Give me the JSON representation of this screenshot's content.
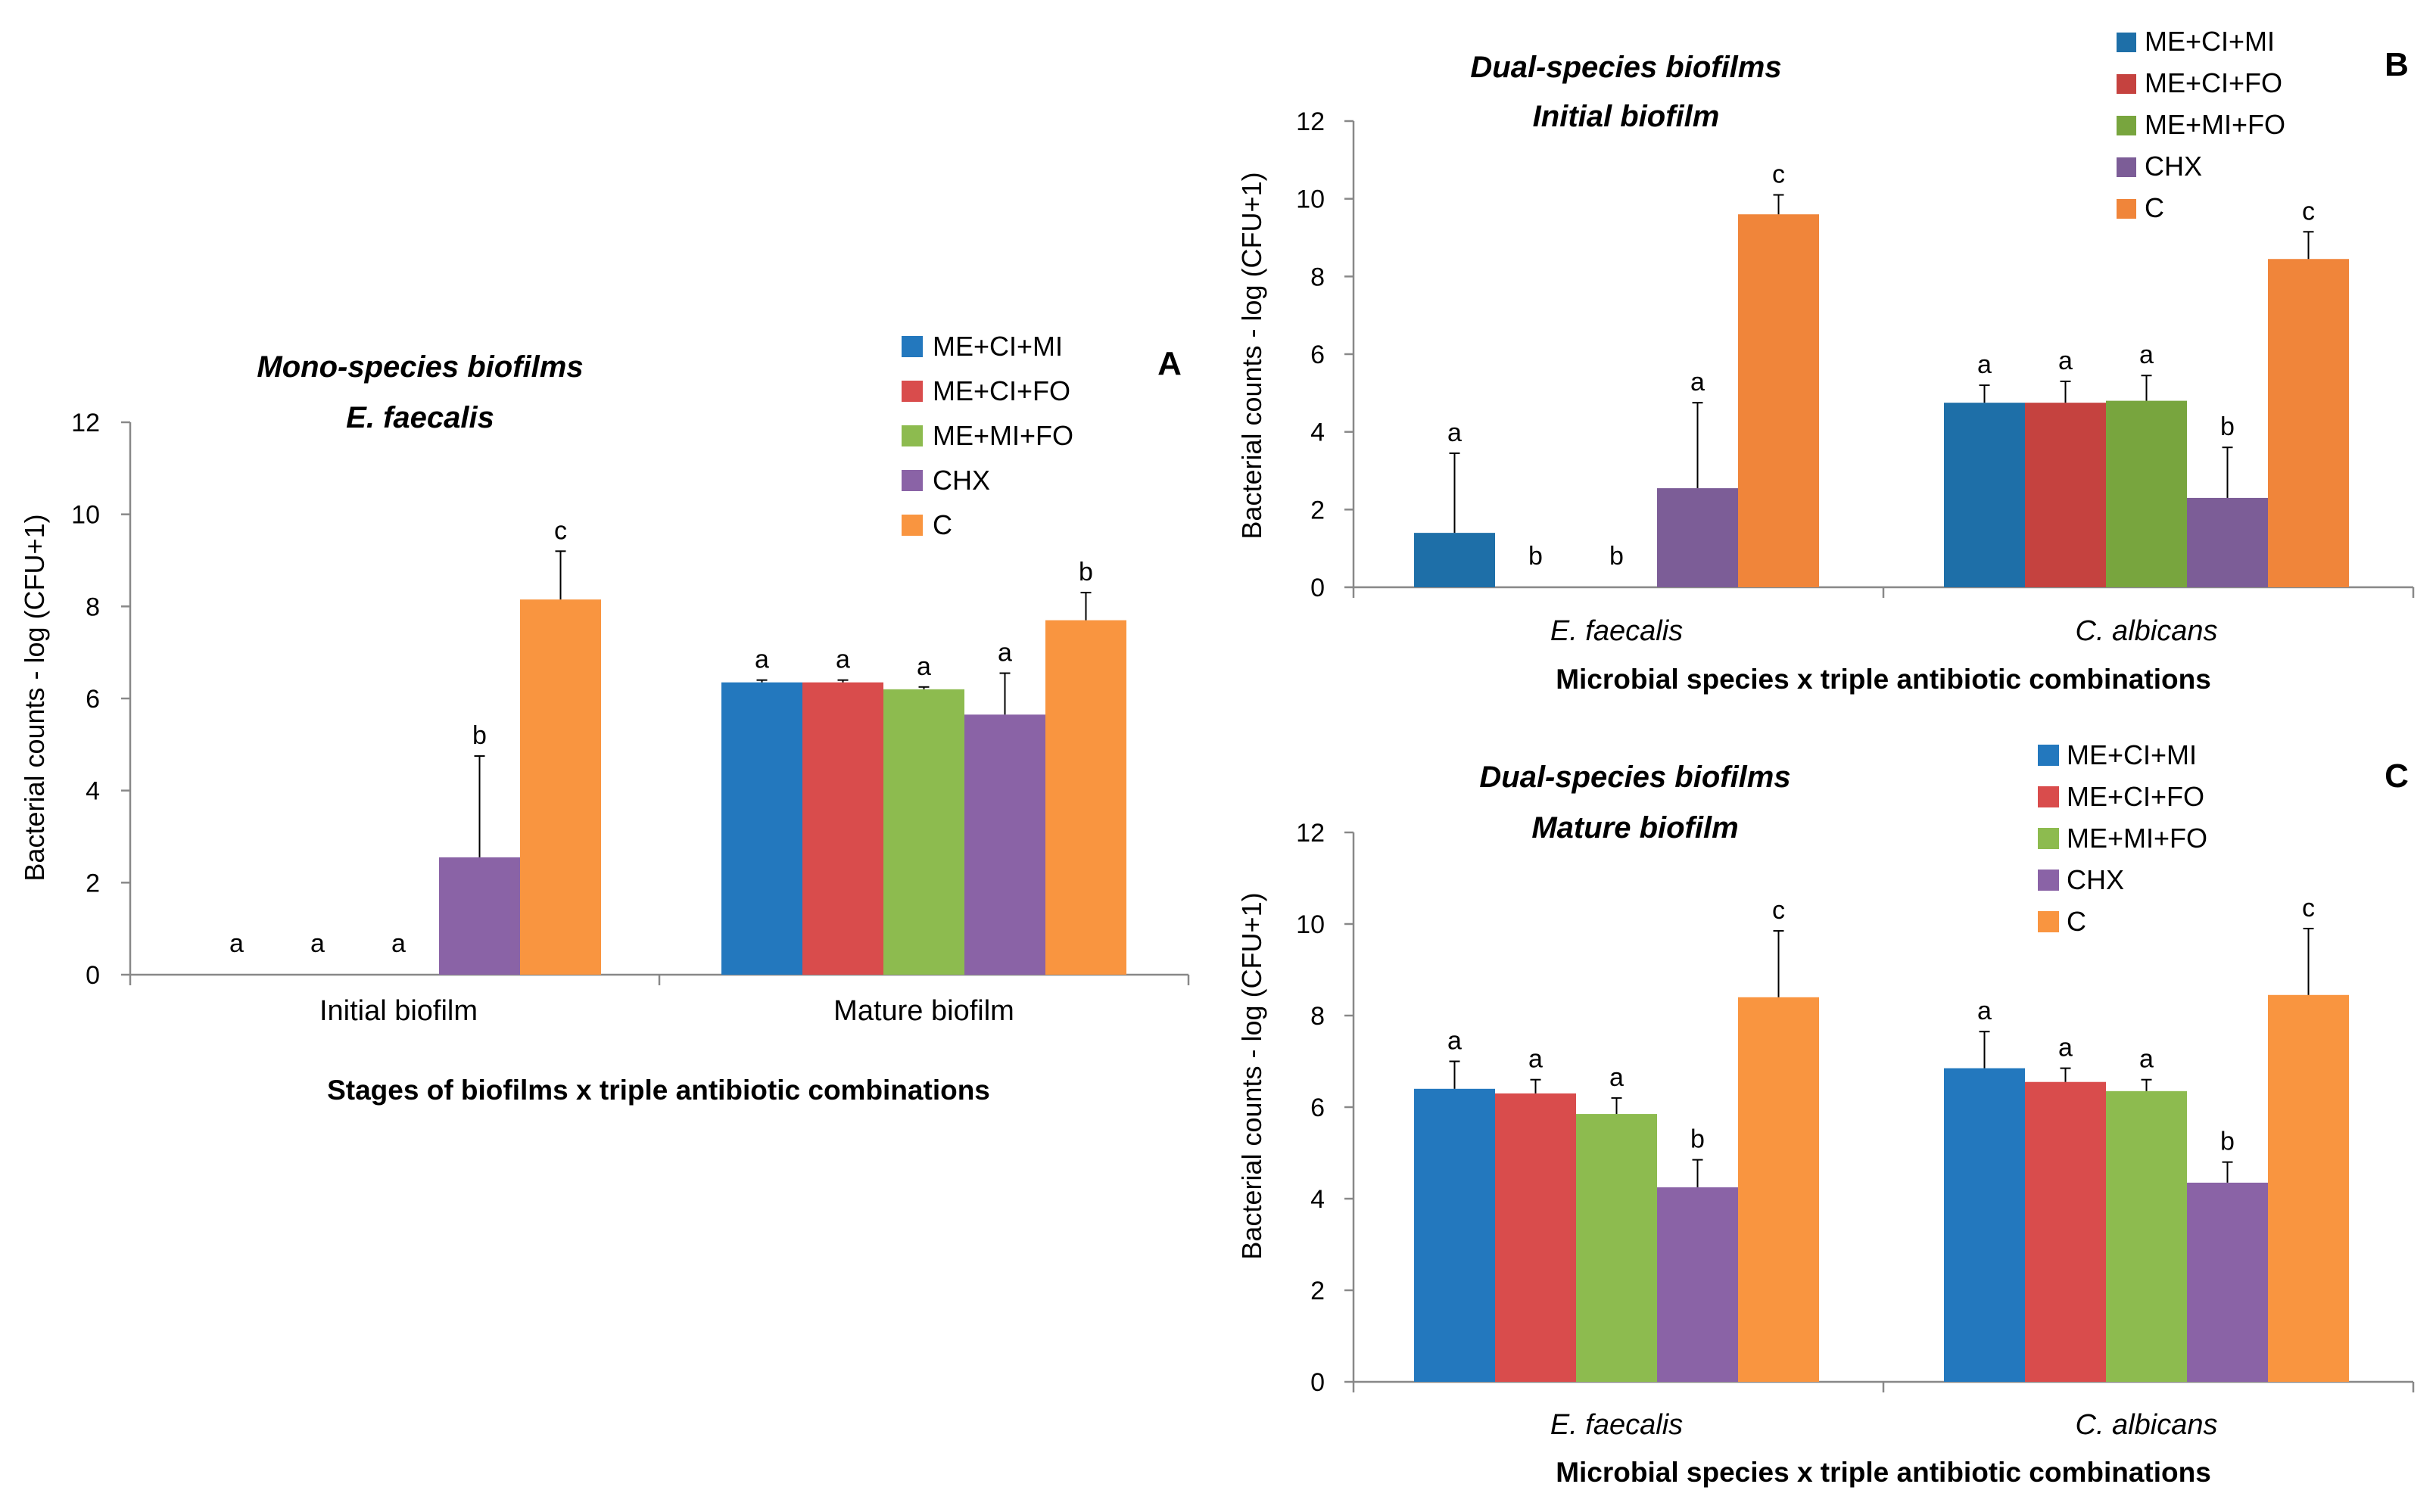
{
  "colors": {
    "ME+CI+MI": "#2378be",
    "ME+CI+FO": "#d94c4c",
    "ME+MI+FO": "#8dbb4f",
    "CHX": "#8a63a6",
    "C": "#f99540",
    "ME+CI+MI_B": "#1e6fa8",
    "ME+CI+FO_B": "#c5423f",
    "ME+MI+FO_B": "#78a53e",
    "CHX_B": "#7c5d97",
    "C_B": "#f0853a"
  },
  "chart_data": [
    {
      "type": "bar",
      "panel": "A",
      "title": [
        "Mono-species biofilms",
        "E. faecalis"
      ],
      "xlabel": "Stages of biofilms x triple antibiotic combinations",
      "ylabel": "Bacterial counts - log (CFU+1)",
      "ylim": [
        0,
        12
      ],
      "yticks": [
        "0",
        "2",
        "4",
        "6",
        "8",
        "10",
        "12"
      ],
      "categories": [
        "Initial biofilm",
        "Mature biofilm"
      ],
      "category_italic": false,
      "legend": [
        "ME+CI+MI",
        "ME+CI+FO",
        "ME+MI+FO",
        "CHX",
        "C"
      ],
      "series": [
        {
          "name": "ME+CI+MI",
          "values": [
            0,
            6.35
          ],
          "errors": [
            0,
            0.05
          ],
          "letters": [
            "a",
            "a"
          ]
        },
        {
          "name": "ME+CI+FO",
          "values": [
            0,
            6.35
          ],
          "errors": [
            0,
            0.05
          ],
          "letters": [
            "a",
            "a"
          ]
        },
        {
          "name": "ME+MI+FO",
          "values": [
            0,
            6.2
          ],
          "errors": [
            0,
            0.05
          ],
          "letters": [
            "a",
            "a"
          ]
        },
        {
          "name": "CHX",
          "values": [
            2.55,
            5.65
          ],
          "errors": [
            2.2,
            0.9
          ],
          "letters": [
            "b",
            "a"
          ]
        },
        {
          "name": "C",
          "values": [
            8.15,
            7.7
          ],
          "errors": [
            1.05,
            0.6
          ],
          "letters": [
            "c",
            "b"
          ]
        }
      ]
    },
    {
      "type": "bar",
      "panel": "B",
      "title": [
        "Dual-species biofilms",
        "Initial biofilm"
      ],
      "xlabel": "Microbial species x triple antibiotic combinations",
      "ylabel": "Bacterial counts - log (CFU+1)",
      "ylim": [
        0,
        12
      ],
      "yticks": [
        "0",
        "2",
        "4",
        "6",
        "8",
        "10",
        "12"
      ],
      "categories": [
        "E.  faecalis",
        "C. albicans"
      ],
      "category_italic": true,
      "legend": [
        "ME+CI+MI",
        "ME+CI+FO",
        "ME+MI+FO",
        "CHX",
        "C"
      ],
      "series": [
        {
          "name": "ME+CI+MI",
          "values": [
            1.4,
            4.75
          ],
          "errors": [
            2.05,
            0.45
          ],
          "letters": [
            "a",
            "a"
          ]
        },
        {
          "name": "ME+CI+FO",
          "values": [
            0,
            4.75
          ],
          "errors": [
            0,
            0.55
          ],
          "letters": [
            "b",
            "a"
          ]
        },
        {
          "name": "ME+MI+FO",
          "values": [
            0,
            4.8
          ],
          "errors": [
            0,
            0.65
          ],
          "letters": [
            "b",
            "a"
          ]
        },
        {
          "name": "CHX",
          "values": [
            2.55,
            2.3
          ],
          "errors": [
            2.2,
            1.3
          ],
          "letters": [
            "a",
            "b"
          ]
        },
        {
          "name": "C",
          "values": [
            9.6,
            8.45
          ],
          "errors": [
            0.5,
            0.7
          ],
          "letters": [
            "c",
            "c"
          ]
        }
      ]
    },
    {
      "type": "bar",
      "panel": "C",
      "title": [
        "Dual-species biofilms",
        "Mature biofilm"
      ],
      "xlabel": "Microbial species x triple antibiotic combinations",
      "ylabel": "Bacterial counts - log (CFU+1)",
      "ylim": [
        0,
        12
      ],
      "yticks": [
        "0",
        "2",
        "4",
        "6",
        "8",
        "10",
        "12"
      ],
      "categories": [
        "E.  faecalis",
        "C. albicans"
      ],
      "category_italic": true,
      "legend": [
        "ME+CI+MI",
        "ME+CI+FO",
        "ME+MI+FO",
        "CHX",
        "C"
      ],
      "series": [
        {
          "name": "ME+CI+MI",
          "values": [
            6.4,
            6.85
          ],
          "errors": [
            0.6,
            0.8
          ],
          "letters": [
            "a",
            "a"
          ]
        },
        {
          "name": "ME+CI+FO",
          "values": [
            6.3,
            6.55
          ],
          "errors": [
            0.3,
            0.3
          ],
          "letters": [
            "a",
            "a"
          ]
        },
        {
          "name": "ME+MI+FO",
          "values": [
            5.85,
            6.35
          ],
          "errors": [
            0.35,
            0.25
          ],
          "letters": [
            "a",
            "a"
          ]
        },
        {
          "name": "CHX",
          "values": [
            4.25,
            4.35
          ],
          "errors": [
            0.6,
            0.45
          ],
          "letters": [
            "b",
            "b"
          ]
        },
        {
          "name": "C",
          "values": [
            8.4,
            8.45
          ],
          "errors": [
            1.45,
            1.45
          ],
          "letters": [
            "c",
            "c"
          ]
        }
      ]
    }
  ]
}
